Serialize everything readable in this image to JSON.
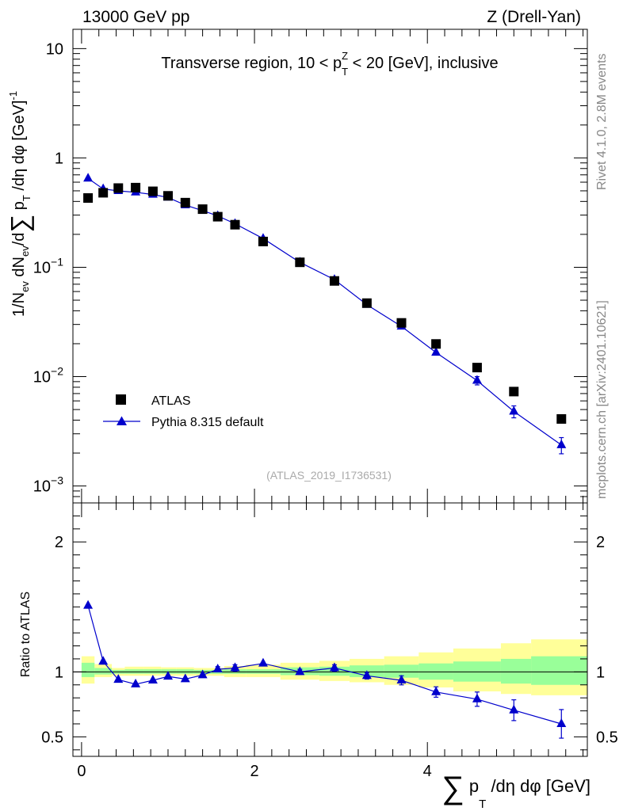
{
  "header": {
    "left": "13000 GeV pp",
    "right": "Z (Drell-Yan)"
  },
  "side_text": {
    "rivet": "Rivet 4.1.0,  2.8M events",
    "url": "mcplots.cern.ch [arXiv:2401.10621]"
  },
  "watermark": "(ATLAS_2019_I1736531)",
  "chart_data": [
    {
      "type": "scatter",
      "title": "Transverse region, 10 < p_T^Z < 20 [GeV], inclusive",
      "title_parts": {
        "a": "Transverse region, 10 < p",
        "sub": "T",
        "sup": "Z",
        "b": " < 20 [GeV], inclusive"
      },
      "ylabel": "1/N_ev dN_ev/d∑ p_T /dη dφ [GeV]^-1",
      "ylabel_parts": {
        "a": "1/N",
        "a_sub": "ev",
        "b": " dN",
        "b_sub": "ev",
        "c": "/d",
        "sigma": "∑",
        "d": " p",
        "d_sub": "T",
        "e": " /dη dφ  [GeV]",
        "e_sup": "-1"
      },
      "yscale": "log",
      "xlim": [
        -0.1,
        5.85
      ],
      "ylim": [
        0.0007,
        15
      ],
      "yticks": [
        {
          "value": 10,
          "label": "10"
        },
        {
          "value": 1,
          "label": "1"
        },
        {
          "value": 0.1,
          "base": "10",
          "exp": "−1"
        },
        {
          "value": 0.01,
          "base": "10",
          "exp": "−2"
        },
        {
          "value": 0.001,
          "base": "10",
          "exp": "−3"
        }
      ],
      "legend": {
        "position": "bottom-left",
        "entries": [
          {
            "label": "ATLAS",
            "marker": "square",
            "color": "#000000"
          },
          {
            "label": "Pythia 8.315 default",
            "marker": "triangle",
            "color": "#0000cc"
          }
        ]
      },
      "series": [
        {
          "name": "ATLAS",
          "x": [
            0.075,
            0.25,
            0.425,
            0.625,
            0.825,
            1.0,
            1.2,
            1.4,
            1.575,
            1.775,
            2.1,
            2.525,
            2.925,
            3.3,
            3.7,
            4.1,
            4.575,
            5.0,
            5.55
          ],
          "y": [
            0.43,
            0.48,
            0.53,
            0.535,
            0.495,
            0.45,
            0.39,
            0.34,
            0.29,
            0.245,
            0.172,
            0.111,
            0.075,
            0.047,
            0.031,
            0.0199,
            0.0121,
            0.0073,
            0.0041
          ],
          "yerr": [
            0,
            0,
            0,
            0,
            0,
            0,
            0,
            0,
            0,
            0,
            0,
            0,
            0,
            0,
            0,
            0,
            0,
            0,
            0
          ]
        },
        {
          "name": "Pythia 8.315 default",
          "x": [
            0.075,
            0.25,
            0.425,
            0.625,
            0.825,
            1.0,
            1.2,
            1.4,
            1.575,
            1.775,
            2.1,
            2.525,
            2.925,
            3.3,
            3.7,
            4.1,
            4.575,
            5.0,
            5.55
          ],
          "y": [
            0.65,
            0.52,
            0.5,
            0.485,
            0.463,
            0.435,
            0.37,
            0.33,
            0.295,
            0.25,
            0.183,
            0.111,
            0.077,
            0.0455,
            0.0288,
            0.0166,
            0.0092,
            0.0048,
            0.00237
          ],
          "yerr": [
            0,
            0,
            0,
            0,
            0,
            0,
            0,
            0,
            0,
            0,
            0,
            0,
            0,
            0,
            0,
            0,
            0.0008,
            0.0006,
            0.0004
          ]
        }
      ]
    },
    {
      "type": "scatter",
      "title": "",
      "ylabel": "Ratio to ATLAS",
      "xlabel": "∑ p_T /dη dφ [GeV]",
      "xlabel_parts": {
        "sigma": "∑",
        "a": " p",
        "a_sub": "T",
        "b": " /dη dφ [GeV]"
      },
      "xlim": [
        -0.1,
        5.85
      ],
      "ylim": [
        0.35,
        2.3
      ],
      "xticks": [
        0,
        2,
        4
      ],
      "yticks": [
        {
          "value": 2,
          "label": "2"
        },
        {
          "value": 1,
          "label": "1"
        },
        {
          "value": 0.5,
          "label": "0.5"
        }
      ],
      "reference_line": 1,
      "bands": {
        "edges": [
          0,
          0.15,
          0.35,
          0.5,
          0.72,
          0.92,
          1.1,
          1.3,
          1.5,
          1.65,
          1.9,
          2.3,
          2.75,
          3.1,
          3.5,
          3.9,
          4.3,
          4.85,
          5.2,
          5.85
        ],
        "inner": [
          [
            0.96,
            1.07
          ],
          [
            0.98,
            1.03
          ],
          [
            0.985,
            1.015
          ],
          [
            0.985,
            1.02
          ],
          [
            0.985,
            1.02
          ],
          [
            0.985,
            1.02
          ],
          [
            0.985,
            1.02
          ],
          [
            0.985,
            1.015
          ],
          [
            0.985,
            1.015
          ],
          [
            0.985,
            1.02
          ],
          [
            0.985,
            1.02
          ],
          [
            0.975,
            1.035
          ],
          [
            0.97,
            1.04
          ],
          [
            0.96,
            1.05
          ],
          [
            0.955,
            1.055
          ],
          [
            0.94,
            1.065
          ],
          [
            0.925,
            1.08
          ],
          [
            0.91,
            1.1
          ],
          [
            0.9,
            1.12
          ]
        ],
        "outer": [
          [
            0.91,
            1.12
          ],
          [
            0.96,
            1.06
          ],
          [
            0.97,
            1.03
          ],
          [
            0.97,
            1.04
          ],
          [
            0.97,
            1.04
          ],
          [
            0.97,
            1.035
          ],
          [
            0.97,
            1.035
          ],
          [
            0.97,
            1.03
          ],
          [
            0.97,
            1.03
          ],
          [
            0.96,
            1.045
          ],
          [
            0.96,
            1.055
          ],
          [
            0.94,
            1.07
          ],
          [
            0.93,
            1.085
          ],
          [
            0.92,
            1.1
          ],
          [
            0.9,
            1.12
          ],
          [
            0.88,
            1.15
          ],
          [
            0.85,
            1.18
          ],
          [
            0.83,
            1.22
          ],
          [
            0.82,
            1.25
          ]
        ],
        "inner_color": "#99ff99",
        "outer_color": "#ffff99"
      },
      "series": [
        {
          "name": "Pythia 8.315 default",
          "color": "#0000cc",
          "x": [
            0.075,
            0.25,
            0.425,
            0.625,
            0.825,
            1.0,
            1.2,
            1.4,
            1.575,
            1.775,
            2.1,
            2.525,
            2.925,
            3.3,
            3.7,
            4.1,
            4.575,
            5.0,
            5.55
          ],
          "y": [
            1.51,
            1.08,
            0.94,
            0.905,
            0.935,
            0.965,
            0.945,
            0.975,
            1.02,
            1.03,
            1.065,
            1.0,
            1.03,
            0.97,
            0.935,
            0.845,
            0.79,
            0.705,
            0.6
          ],
          "yerr": [
            0,
            0,
            0,
            0,
            0,
            0,
            0,
            0,
            0.02,
            0.025,
            0,
            0.02,
            0.025,
            0.025,
            0.035,
            0.04,
            0.055,
            0.08,
            0.11
          ]
        }
      ]
    }
  ]
}
